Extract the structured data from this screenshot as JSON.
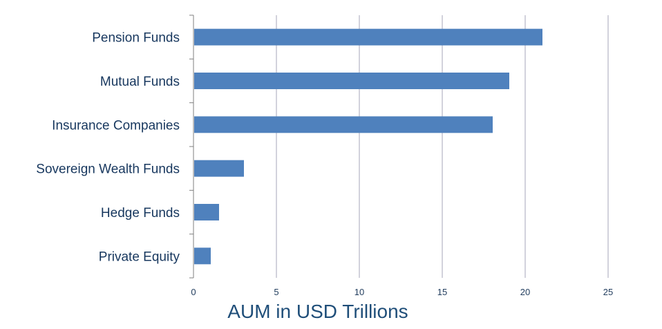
{
  "chart_data": {
    "type": "bar",
    "orientation": "horizontal",
    "categories": [
      "Pension Funds",
      "Mutual Funds",
      "Insurance Companies",
      "Sovereign Wealth Funds",
      "Hedge Funds",
      "Private Equity"
    ],
    "values": [
      21,
      19,
      18,
      3,
      1.5,
      1
    ],
    "title": "",
    "xlabel": "AUM in USD Trillions",
    "ylabel": "",
    "xlim": [
      0,
      25
    ],
    "xticks": [
      "0",
      "5",
      "10",
      "15",
      "20",
      "25"
    ],
    "grid": "vertical",
    "legend": "none",
    "colors": {
      "bar": "#4f81bd",
      "grid": "#a6a6b8",
      "axis": "#7f7f7f",
      "category_text": "#17375e",
      "tick_text": "#1f3b5c",
      "title_text": "#1f4e79"
    }
  }
}
